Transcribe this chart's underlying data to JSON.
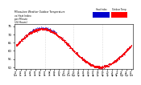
{
  "title": "Milwaukee Weather Outdoor Temperature\nvs Heat Index\nper Minute\n(24 Hours)",
  "title_fontsize": 2.2,
  "bg_color": "#ffffff",
  "temp_color": "#ff0000",
  "hi_color": "#0000cc",
  "ylim": [
    49,
    76
  ],
  "yticks": [
    50,
    55,
    60,
    65,
    70,
    75
  ],
  "ylabel_fontsize": 2.8,
  "xlabel_fontsize": 2.0,
  "scatter_size": 0.3,
  "vline_color": "#bbbbbb",
  "minutes_per_day": 1440,
  "temp_data_key": "generated",
  "legend_hi_label": "Heat Index",
  "legend_temp_label": "Outdoor Temp"
}
